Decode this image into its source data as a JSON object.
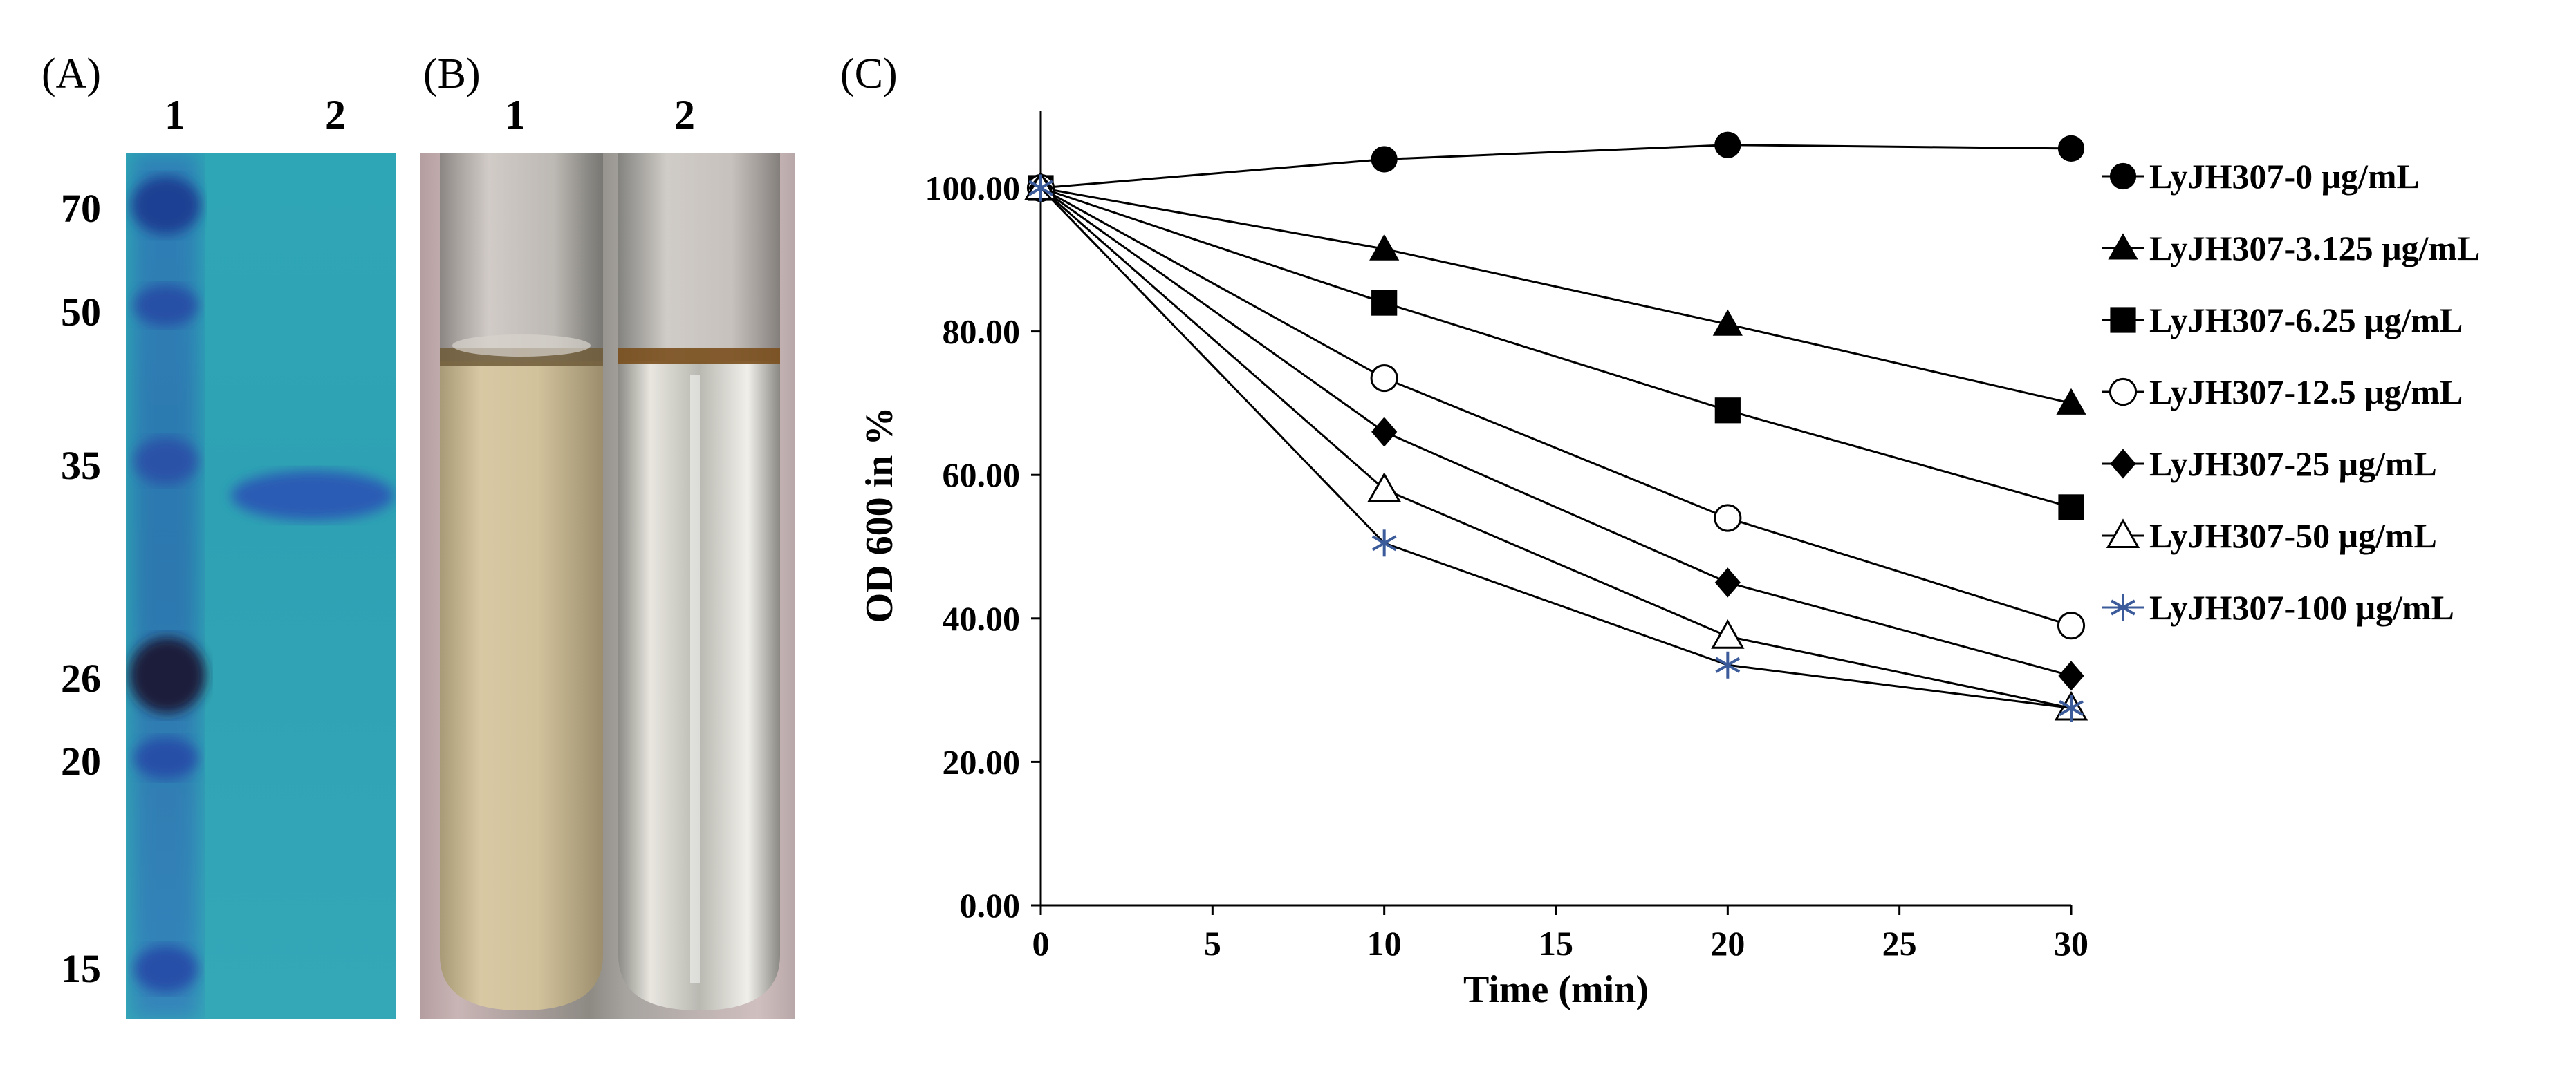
{
  "panels": {
    "a_label": "(A)",
    "b_label": "(B)",
    "c_label": "(C)"
  },
  "gel": {
    "lane_labels": [
      "1",
      "2"
    ],
    "markers": [
      "70",
      "50",
      "35",
      "26",
      "20",
      "15"
    ]
  },
  "tubes": {
    "lane_labels": [
      "1",
      "2"
    ]
  },
  "chart_data": {
    "type": "line",
    "title": "",
    "xlabel": "Time (min)",
    "ylabel": "OD 600 in %",
    "x": [
      0,
      10,
      20,
      30
    ],
    "xlim": [
      0,
      30
    ],
    "ylim": [
      0,
      110
    ],
    "xticks": [
      "0",
      "5",
      "10",
      "15",
      "20",
      "25",
      "30"
    ],
    "yticks": [
      "0.00",
      "20.00",
      "40.00",
      "60.00",
      "80.00",
      "100.00"
    ],
    "series": [
      {
        "name": "LyJH307-0 μg/mL",
        "marker": "circle-filled",
        "color": "#000000",
        "values": [
          100,
          104,
          106,
          105.5
        ]
      },
      {
        "name": "LyJH307-3.125 μg/mL",
        "marker": "triangle-filled",
        "color": "#000000",
        "values": [
          100,
          91.5,
          81,
          70
        ]
      },
      {
        "name": "LyJH307-6.25 μg/mL",
        "marker": "square-filled",
        "color": "#000000",
        "values": [
          100,
          84,
          69,
          55.5
        ]
      },
      {
        "name": "LyJH307-12.5 μg/mL",
        "marker": "circle-open",
        "color": "#000000",
        "values": [
          100,
          73.5,
          54,
          39
        ]
      },
      {
        "name": "LyJH307-25 μg/mL",
        "marker": "diamond-filled",
        "color": "#000000",
        "values": [
          100,
          66,
          45,
          32
        ]
      },
      {
        "name": "LyJH307-50 μg/mL",
        "marker": "triangle-open",
        "color": "#000000",
        "values": [
          100,
          58,
          37.5,
          27.5
        ]
      },
      {
        "name": "LyJH307-100 μg/mL",
        "marker": "star",
        "color": "#3b5b9a",
        "values": [
          100,
          50.5,
          33.5,
          27.5
        ]
      }
    ]
  }
}
